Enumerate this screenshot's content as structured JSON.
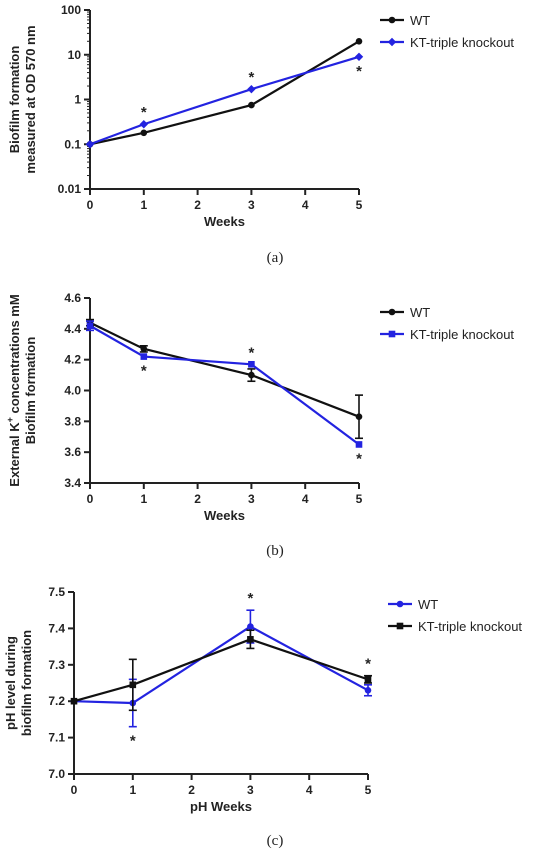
{
  "chart_data": [
    {
      "type": "line",
      "caption": "(a)",
      "ylabel": [
        "Biofilm formation",
        "measured at OD 570 nm"
      ],
      "xlabel": "Weeks",
      "yscale": "log",
      "ylim": [
        0.01,
        100
      ],
      "yticks": [
        0.01,
        0.1,
        1,
        10,
        100
      ],
      "ytick_labels": [
        "0.01",
        "0.1",
        "1",
        "10",
        "100"
      ],
      "xlim": [
        0,
        5
      ],
      "xticks": [
        0,
        1,
        2,
        3,
        4,
        5
      ],
      "legend_position": "top-right",
      "series": [
        {
          "name": "WT",
          "color": "#111111",
          "marker": "circle",
          "x": [
            0,
            1,
            3,
            5
          ],
          "y": [
            0.1,
            0.18,
            0.75,
            20
          ],
          "err": [
            0,
            0,
            0,
            0
          ]
        },
        {
          "name": "KT-triple knockout",
          "color": "#2323e0",
          "marker": "diamond",
          "x": [
            0,
            1,
            3,
            5
          ],
          "y": [
            0.1,
            0.28,
            1.7,
            9
          ],
          "err": [
            0,
            0,
            0,
            0
          ]
        }
      ],
      "annotations": [
        {
          "text": "*",
          "x": 1,
          "y": 0.28,
          "pos": "above"
        },
        {
          "text": "*",
          "x": 3,
          "y": 1.7,
          "pos": "above"
        },
        {
          "text": "*",
          "x": 5,
          "y": 9,
          "pos": "below"
        }
      ]
    },
    {
      "type": "line",
      "caption": "(b)",
      "ylabel": [
        "External K+ concentrations mM",
        "Biofilm formation"
      ],
      "xlabel": "Weeks",
      "yscale": "linear",
      "ylim": [
        3.4,
        4.6
      ],
      "yticks": [
        3.4,
        3.6,
        3.8,
        4.0,
        4.2,
        4.4,
        4.6
      ],
      "ytick_labels": [
        "3.4",
        "3.6",
        "3.8",
        "4.0",
        "4.2",
        "4.4",
        "4.6"
      ],
      "xlim": [
        0,
        5
      ],
      "xticks": [
        0,
        1,
        2,
        3,
        4,
        5
      ],
      "legend_position": "top-right",
      "series": [
        {
          "name": "WT",
          "color": "#111111",
          "marker": "circle",
          "x": [
            0,
            1,
            3,
            5
          ],
          "y": [
            4.44,
            4.27,
            4.1,
            3.83
          ],
          "err": [
            0.02,
            0.02,
            0.04,
            0.14
          ]
        },
        {
          "name": "KT-triple knockout",
          "color": "#2323e0",
          "marker": "square",
          "x": [
            0,
            1,
            3,
            5
          ],
          "y": [
            4.42,
            4.22,
            4.17,
            3.65
          ],
          "err": [
            0.03,
            0,
            0,
            0
          ]
        }
      ],
      "annotations": [
        {
          "text": "*",
          "x": 1,
          "y": 4.22,
          "pos": "below"
        },
        {
          "text": "*",
          "x": 3,
          "y": 4.17,
          "pos": "above"
        },
        {
          "text": "*",
          "x": 5,
          "y": 3.65,
          "pos": "below"
        }
      ]
    },
    {
      "type": "line",
      "caption": "(c)",
      "ylabel": [
        "pH level during",
        "biofilm formation"
      ],
      "xlabel": "pH Weeks",
      "yscale": "linear",
      "ylim": [
        7.0,
        7.5
      ],
      "yticks": [
        7.0,
        7.1,
        7.2,
        7.3,
        7.4,
        7.5
      ],
      "ytick_labels": [
        "7.0",
        "7.1",
        "7.2",
        "7.3",
        "7.4",
        "7.5"
      ],
      "xlim": [
        0,
        5
      ],
      "xticks": [
        0,
        1,
        2,
        3,
        4,
        5
      ],
      "legend_position": "top-right",
      "series": [
        {
          "name": "WT",
          "color": "#2323e0",
          "marker": "circle",
          "x": [
            0,
            1,
            3,
            5
          ],
          "y": [
            7.2,
            7.195,
            7.405,
            7.23
          ],
          "err": [
            0,
            0.065,
            0.045,
            0.015
          ]
        },
        {
          "name": "KT-triple knockout",
          "color": "#111111",
          "marker": "square",
          "x": [
            0,
            1,
            3,
            5
          ],
          "y": [
            7.2,
            7.245,
            7.37,
            7.26
          ],
          "err": [
            0,
            0.07,
            0.025,
            0.01
          ]
        }
      ],
      "annotations": [
        {
          "text": "*",
          "x": 1,
          "y": 7.13,
          "pos": "below"
        },
        {
          "text": "*",
          "x": 3,
          "y": 7.45,
          "pos": "above"
        },
        {
          "text": "*",
          "x": 5,
          "y": 7.27,
          "pos": "above"
        }
      ]
    }
  ]
}
